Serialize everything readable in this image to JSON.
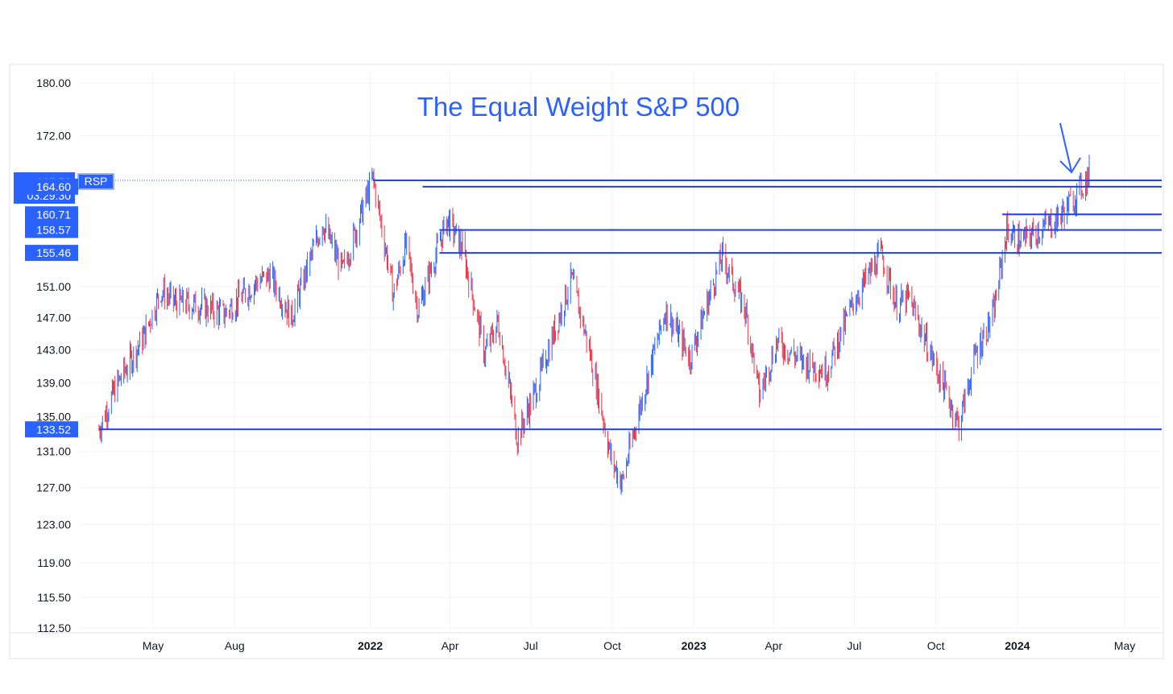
{
  "chart_data": {
    "type": "candlestick",
    "title": "The Equal Weight S&P 500",
    "symbol": "RSP",
    "last_price": "165.50",
    "countdown": "03:29:30",
    "y_scale": "log",
    "ylim": [
      112.5,
      181.5
    ],
    "y_ticks": [
      "180.00",
      "172.00",
      "151.00",
      "147.00",
      "143.00",
      "139.00",
      "135.00",
      "131.00",
      "127.00",
      "123.00",
      "119.00",
      "115.50",
      "112.50"
    ],
    "x_ticks": [
      {
        "label": "May",
        "date": "2021-05-01",
        "bold": false
      },
      {
        "label": "Aug",
        "date": "2021-08-01",
        "bold": false
      },
      {
        "label": "2022",
        "date": "2022-01-01",
        "bold": true
      },
      {
        "label": "Apr",
        "date": "2022-04-01",
        "bold": false
      },
      {
        "label": "Jul",
        "date": "2022-07-01",
        "bold": false
      },
      {
        "label": "Oct",
        "date": "2022-10-01",
        "bold": false
      },
      {
        "label": "2023",
        "date": "2023-01-01",
        "bold": true
      },
      {
        "label": "Apr",
        "date": "2023-04-01",
        "bold": false
      },
      {
        "label": "Jul",
        "date": "2023-07-01",
        "bold": false
      },
      {
        "label": "Oct",
        "date": "2023-10-01",
        "bold": false
      },
      {
        "label": "2024",
        "date": "2024-01-01",
        "bold": true
      },
      {
        "label": "May",
        "date": "2024-05-01",
        "bold": false
      }
    ],
    "xlim": [
      "2021-02-15",
      "2024-06-15"
    ],
    "levels": [
      {
        "value": 165.5,
        "label": "165.50",
        "start": "2022-01-04"
      },
      {
        "value": 164.6,
        "label": "164.60",
        "start": "2022-03-01"
      },
      {
        "value": 160.71,
        "label": "160.71",
        "start": "2023-12-15"
      },
      {
        "value": 158.57,
        "label": "158.57",
        "start": "2022-03-20"
      },
      {
        "value": 155.46,
        "label": "155.46",
        "start": "2022-03-20"
      },
      {
        "value": 133.52,
        "label": "133.52",
        "start": "2021-03-01"
      }
    ],
    "close_path": [
      [
        "2021-03-01",
        133.5
      ],
      [
        "2021-03-20",
        138.5
      ],
      [
        "2021-04-20",
        144.5
      ],
      [
        "2021-05-10",
        150.5
      ],
      [
        "2021-05-25",
        149.0
      ],
      [
        "2021-06-25",
        148.5
      ],
      [
        "2021-07-20",
        147.5
      ],
      [
        "2021-08-25",
        151.5
      ],
      [
        "2021-09-10",
        152.5
      ],
      [
        "2021-10-04",
        147.0
      ],
      [
        "2021-11-08",
        159.5
      ],
      [
        "2021-12-01",
        153.0
      ],
      [
        "2022-01-04",
        165.8
      ],
      [
        "2022-01-27",
        150.0
      ],
      [
        "2022-02-10",
        156.5
      ],
      [
        "2022-02-24",
        148.0
      ],
      [
        "2022-03-29",
        160.0
      ],
      [
        "2022-04-15",
        156.0
      ],
      [
        "2022-05-10",
        142.5
      ],
      [
        "2022-05-25",
        146.5
      ],
      [
        "2022-06-16",
        132.5
      ],
      [
        "2022-07-08",
        138.5
      ],
      [
        "2022-08-16",
        152.0
      ],
      [
        "2022-09-05",
        143.0
      ],
      [
        "2022-09-30",
        130.0
      ],
      [
        "2022-10-12",
        127.5
      ],
      [
        "2022-11-01",
        136.0
      ],
      [
        "2022-11-30",
        148.0
      ],
      [
        "2022-12-28",
        142.0
      ],
      [
        "2023-02-02",
        155.0
      ],
      [
        "2023-02-28",
        148.0
      ],
      [
        "2023-03-16",
        137.5
      ],
      [
        "2023-04-05",
        144.0
      ],
      [
        "2023-05-04",
        141.5
      ],
      [
        "2023-05-31",
        140.5
      ],
      [
        "2023-06-30",
        149.0
      ],
      [
        "2023-07-31",
        155.3
      ],
      [
        "2023-08-18",
        148.5
      ],
      [
        "2023-09-01",
        149.5
      ],
      [
        "2023-09-25",
        142.5
      ],
      [
        "2023-10-27",
        134.0
      ],
      [
        "2023-11-15",
        142.5
      ],
      [
        "2023-12-05",
        147.5
      ],
      [
        "2023-12-20",
        158.5
      ],
      [
        "2024-01-05",
        157.0
      ],
      [
        "2024-01-25",
        158.5
      ],
      [
        "2024-02-15",
        160.0
      ],
      [
        "2024-03-05",
        163.0
      ],
      [
        "2024-03-22",
        166.3
      ]
    ]
  }
}
